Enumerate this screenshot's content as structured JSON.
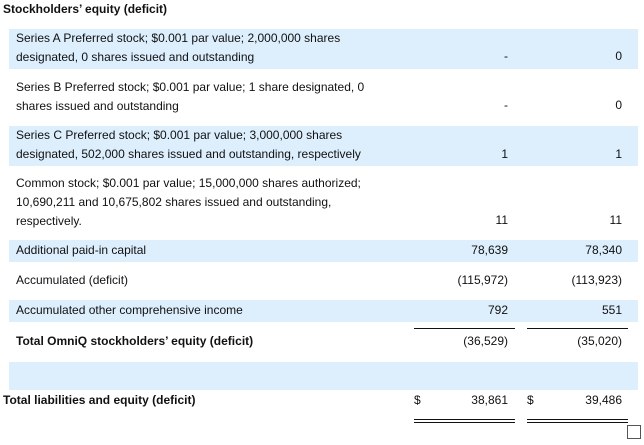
{
  "section_title": "Stockholders’ equity (deficit)",
  "rows": [
    {
      "label": "Series A Preferred stock; $0.001 par value; 2,000,000 shares designated, 0 shares issued and outstanding",
      "col1": "-",
      "col2": "0"
    },
    {
      "label": "Series B Preferred stock; $0.001 par value; 1 share designated, 0 shares issued and outstanding",
      "col1": "-",
      "col2": "0"
    },
    {
      "label": "Series C Preferred stock; $0.001 par value; 3,000,000 shares designated, 502,000 shares issued and outstanding, respectively",
      "col1": "1",
      "col2": "1"
    },
    {
      "label": "Common stock; $0.001 par value; 15,000,000 shares authorized; 10,690,211 and 10,675,802 shares issued and outstanding, respectively.",
      "col1": "11",
      "col2": "11"
    },
    {
      "label": "Additional paid-in capital",
      "col1": "78,639",
      "col2": "78,340"
    },
    {
      "label": "Accumulated (deficit)",
      "col1": "(115,972)",
      "col2": "(113,923)"
    },
    {
      "label": "Accumulated other comprehensive income",
      "col1": "792",
      "col2": "551"
    },
    {
      "label": "Total OmniQ stockholders’ equity (deficit)",
      "col1": "(36,529)",
      "col2": "(35,020)"
    }
  ],
  "total": {
    "label": "Total liabilities and equity (deficit)",
    "currency": "$",
    "col1": "38,861",
    "col2": "39,486"
  }
}
